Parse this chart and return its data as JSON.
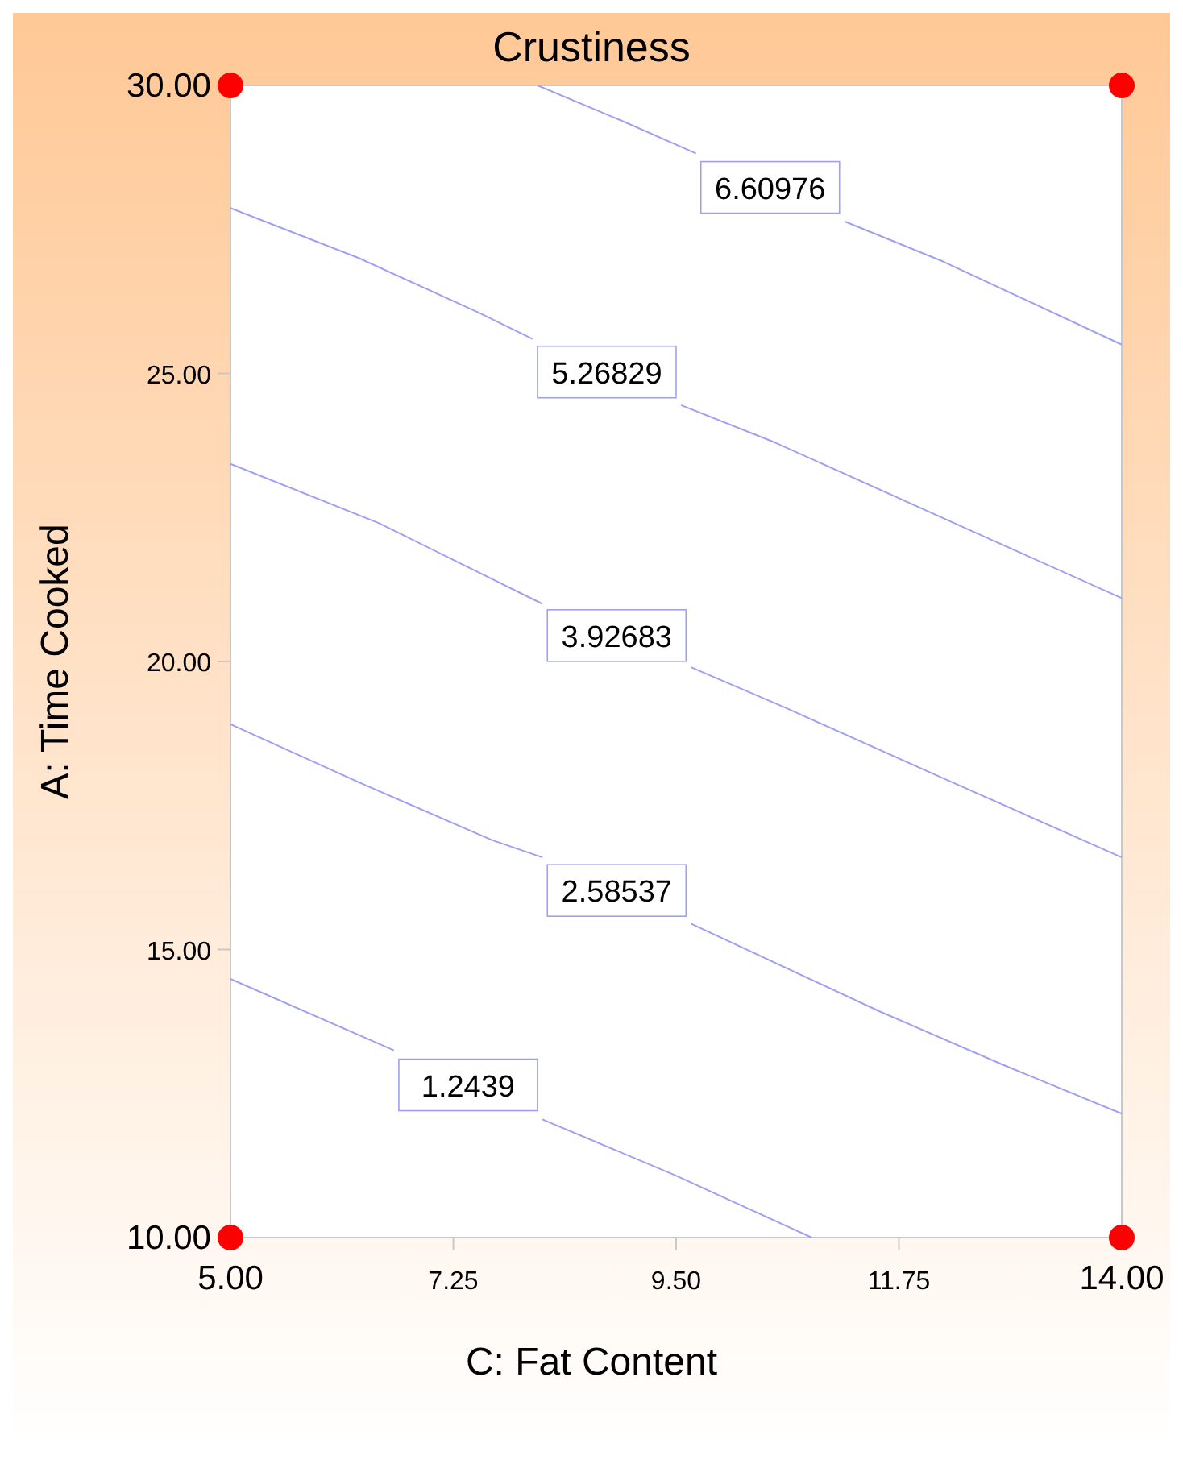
{
  "chart_data": {
    "type": "line",
    "title": "Crustiness",
    "xlabel": "C: Fat Content",
    "ylabel": "A: Time Cooked",
    "xlim": [
      5,
      14
    ],
    "xticks": [
      {
        "value": 5,
        "label": "5.00"
      },
      {
        "value": 7.25,
        "label": "7.25"
      },
      {
        "value": 9.5,
        "label": "9.50"
      },
      {
        "value": 11.75,
        "label": "11.75"
      },
      {
        "value": 14,
        "label": "14.00"
      }
    ],
    "ylim": [
      10,
      30
    ],
    "yticks": [
      {
        "value": 10,
        "label": "10.00"
      },
      {
        "value": 15,
        "label": "15.00"
      },
      {
        "value": 20,
        "label": "20.00"
      },
      {
        "value": 25,
        "label": "25.00"
      },
      {
        "value": 30,
        "label": "30.00"
      }
    ],
    "grid": false,
    "legend": false,
    "series": [
      {
        "name": "6.60976",
        "color": "#a0a0f0",
        "x": [
          8.1,
          9.0,
          9.7,
          10.45,
          11.2,
          12.2,
          14
        ],
        "values": [
          30,
          29.35,
          28.82,
          null,
          27.64,
          26.94,
          25.5
        ]
      },
      {
        "name": "5.26829",
        "color": "#a0a0f0",
        "x": [
          5,
          6.3,
          7.5,
          8.05,
          8.8,
          9.55,
          10.5,
          12.7,
          14
        ],
        "values": [
          27.87,
          27.0,
          26.06,
          25.6,
          null,
          24.45,
          23.8,
          22.1,
          21.1
        ]
      },
      {
        "name": "3.92683",
        "color": "#a0a0f0",
        "x": [
          5,
          6.5,
          8.15,
          8.9,
          9.65,
          10.6,
          12.2,
          14
        ],
        "values": [
          23.43,
          22.4,
          21.0,
          null,
          19.9,
          19.2,
          17.97,
          16.6
        ]
      },
      {
        "name": "2.58537",
        "color": "#a0a0f0",
        "x": [
          5,
          6.3,
          7.64,
          8.15,
          8.9,
          9.65,
          11.55,
          12.8,
          14
        ],
        "values": [
          18.91,
          17.9,
          16.9,
          16.6,
          null,
          15.45,
          13.93,
          13.0,
          12.15
        ]
      },
      {
        "name": "1.2439",
        "color": "#a0a0f0",
        "x": [
          5,
          6.65,
          7.4,
          8.15,
          9.48,
          10.87
        ],
        "values": [
          14.49,
          13.25,
          null,
          12.05,
          11.09,
          10
        ]
      },
      {
        "type": "scatter",
        "color": "#ff0000",
        "marker": "circle",
        "x": [
          5,
          5,
          14,
          14
        ],
        "values": [
          10,
          30,
          10,
          30
        ]
      }
    ]
  }
}
